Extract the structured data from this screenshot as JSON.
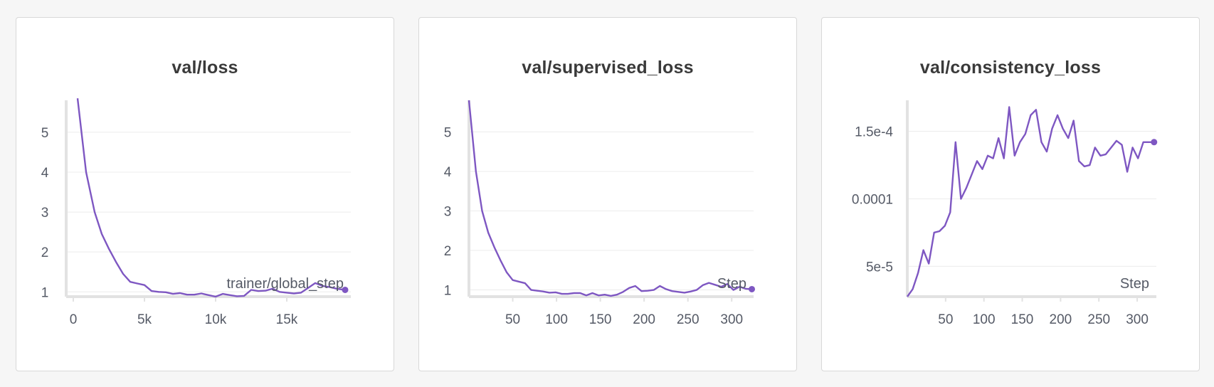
{
  "colors": {
    "series": "#7e57c2",
    "grid": "#ececec",
    "axis": "#e2e2e2"
  },
  "chart_data": [
    {
      "type": "line",
      "title": "val/loss",
      "xlabel": "trainer/global_step",
      "ylabel": "",
      "xlim": [
        -500,
        19500
      ],
      "ylim": [
        0.88,
        5.8
      ],
      "x_ticks": [
        0,
        5000,
        10000,
        15000
      ],
      "x_tick_labels": [
        "0",
        "5k",
        "10k",
        "15k"
      ],
      "y_ticks": [
        1,
        2,
        3,
        4,
        5
      ],
      "y_tick_labels": [
        "1",
        "2",
        "3",
        "4",
        "5"
      ],
      "grid": true,
      "series": [
        {
          "x": [
            300,
            900,
            1500,
            2000,
            2500,
            3000,
            3500,
            4000,
            4500,
            5000,
            5500,
            6000,
            6500,
            7000,
            7500,
            8000,
            8500,
            9000,
            9500,
            10000,
            10500,
            11000,
            11500,
            12000,
            12500,
            13000,
            13500,
            14000,
            14500,
            15000,
            15500,
            16000,
            16500,
            17000,
            17500,
            18000,
            18500,
            19100
          ],
          "y": [
            5.85,
            4.0,
            3.0,
            2.45,
            2.08,
            1.75,
            1.45,
            1.25,
            1.21,
            1.17,
            1.02,
            1.0,
            0.99,
            0.95,
            0.97,
            0.93,
            0.93,
            0.96,
            0.92,
            0.88,
            0.95,
            0.92,
            0.89,
            0.9,
            1.05,
            1.02,
            1.03,
            1.08,
            1.0,
            0.98,
            0.96,
            0.98,
            1.1,
            1.22,
            1.15,
            1.12,
            1.08,
            1.05
          ]
        }
      ]
    },
    {
      "type": "line",
      "title": "val/supervised_loss",
      "xlabel": "Step",
      "ylabel": "",
      "xlim": [
        0,
        325
      ],
      "ylim": [
        0.83,
        5.8
      ],
      "x_ticks": [
        50,
        100,
        150,
        200,
        250,
        300
      ],
      "x_tick_labels": [
        "50",
        "100",
        "150",
        "200",
        "250",
        "300"
      ],
      "y_ticks": [
        1,
        2,
        3,
        4,
        5
      ],
      "y_tick_labels": [
        "1",
        "2",
        "3",
        "4",
        "5"
      ],
      "grid": true,
      "series": [
        {
          "x": [
            0,
            8,
            15,
            22,
            29,
            36,
            43,
            50,
            57,
            64,
            71,
            78,
            85,
            92,
            99,
            106,
            113,
            120,
            127,
            134,
            141,
            148,
            155,
            162,
            169,
            176,
            183,
            190,
            197,
            204,
            211,
            218,
            225,
            232,
            239,
            246,
            253,
            260,
            267,
            274,
            281,
            288,
            295,
            302,
            309,
            316,
            323
          ],
          "y": [
            5.8,
            4.0,
            3.0,
            2.45,
            2.08,
            1.75,
            1.45,
            1.25,
            1.21,
            1.17,
            1.0,
            0.98,
            0.96,
            0.93,
            0.94,
            0.9,
            0.9,
            0.92,
            0.92,
            0.86,
            0.92,
            0.86,
            0.88,
            0.85,
            0.88,
            0.95,
            1.05,
            1.1,
            0.97,
            0.98,
            1.0,
            1.1,
            1.02,
            0.97,
            0.95,
            0.93,
            0.96,
            1.0,
            1.12,
            1.18,
            1.13,
            1.08,
            1.15,
            1.0,
            1.08,
            1.03,
            1.02
          ]
        }
      ]
    },
    {
      "type": "line",
      "title": "val/consistency_loss",
      "xlabel": "Step",
      "ylabel": "",
      "xlim": [
        0,
        325
      ],
      "ylim": [
        2.75e-05,
        0.000173
      ],
      "x_ticks": [
        50,
        100,
        150,
        200,
        250,
        300
      ],
      "x_tick_labels": [
        "50",
        "100",
        "150",
        "200",
        "250",
        "300"
      ],
      "y_ticks": [
        5e-05,
        0.0001,
        0.00015
      ],
      "y_tick_labels": [
        "5e-5",
        "0.0001",
        "1.5e-4"
      ],
      "grid": true,
      "series": [
        {
          "x": [
            0,
            7,
            14,
            21,
            28,
            35,
            42,
            49,
            56,
            63,
            70,
            77,
            84,
            91,
            98,
            105,
            112,
            119,
            126,
            133,
            140,
            147,
            154,
            161,
            168,
            175,
            182,
            189,
            196,
            203,
            210,
            217,
            224,
            231,
            238,
            245,
            252,
            259,
            266,
            273,
            280,
            287,
            294,
            301,
            308,
            315,
            322
          ],
          "y": [
            2.75e-05,
            3.3e-05,
            4.5e-05,
            6.2e-05,
            5.2e-05,
            7.5e-05,
            7.6e-05,
            8e-05,
            9e-05,
            0.000142,
            0.0001,
            0.000108,
            0.000118,
            0.000128,
            0.000122,
            0.000132,
            0.00013,
            0.000145,
            0.00013,
            0.000168,
            0.000132,
            0.000142,
            0.000148,
            0.000162,
            0.000166,
            0.000142,
            0.000135,
            0.000152,
            0.000162,
            0.000152,
            0.000145,
            0.000158,
            0.000128,
            0.000124,
            0.000125,
            0.000138,
            0.000132,
            0.000133,
            0.000138,
            0.000143,
            0.00014,
            0.00012,
            0.000138,
            0.00013,
            0.000142,
            0.000142,
            0.000142
          ]
        }
      ]
    }
  ]
}
